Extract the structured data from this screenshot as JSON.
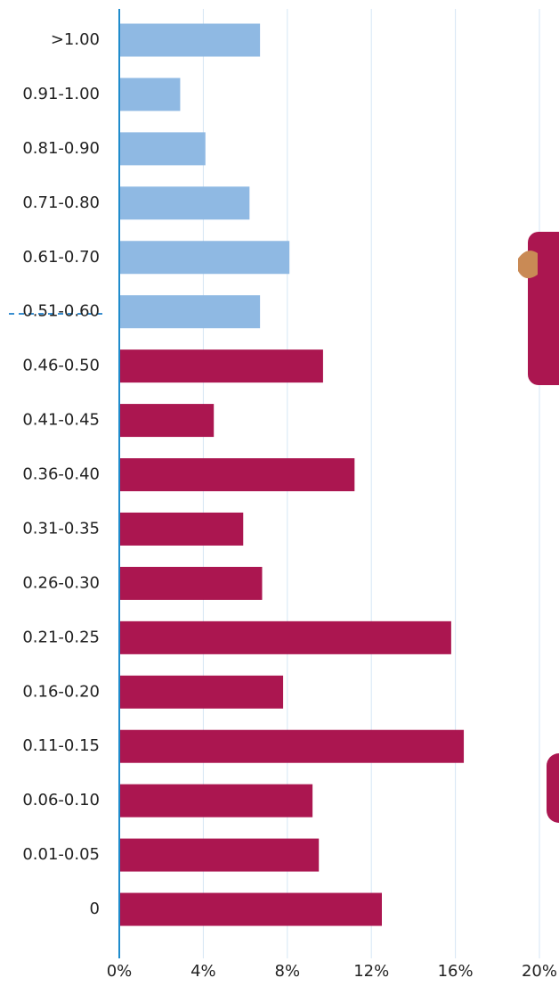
{
  "chart_data": {
    "type": "hbar",
    "categories": [
      ">1.00",
      "0.91-1.00",
      "0.81-0.90",
      "0.71-0.80",
      "0.61-0.70",
      "0.51-0.60",
      "0.46-0.50",
      "0.41-0.45",
      "0.36-0.40",
      "0.31-0.35",
      "0.26-0.30",
      "0.21-0.25",
      "0.16-0.20",
      "0.11-0.15",
      "0.06-0.10",
      "0.01-0.05",
      "0"
    ],
    "values": [
      6.7,
      2.9,
      4.1,
      6.2,
      8.1,
      6.7,
      9.7,
      4.5,
      11.2,
      5.9,
      6.8,
      15.8,
      7.8,
      16.4,
      9.2,
      9.5,
      12.5
    ],
    "colors": [
      "#8fb9e3",
      "#8fb9e3",
      "#8fb9e3",
      "#8fb9e3",
      "#8fb9e3",
      "#8fb9e3",
      "#ab1650",
      "#ab1650",
      "#ab1650",
      "#ab1650",
      "#ab1650",
      "#ab1650",
      "#ab1650",
      "#ab1650",
      "#ab1650",
      "#ab1650",
      "#ab1650"
    ],
    "xlim": [
      0,
      20
    ],
    "xticks": [
      {
        "value": 0,
        "label": "0%"
      },
      {
        "value": 4,
        "label": "4%"
      },
      {
        "value": 8,
        "label": "8%"
      },
      {
        "value": 12,
        "label": "12%"
      },
      {
        "value": 16,
        "label": "16%"
      },
      {
        "value": 20,
        "label": "20%"
      }
    ],
    "grid": true
  }
}
